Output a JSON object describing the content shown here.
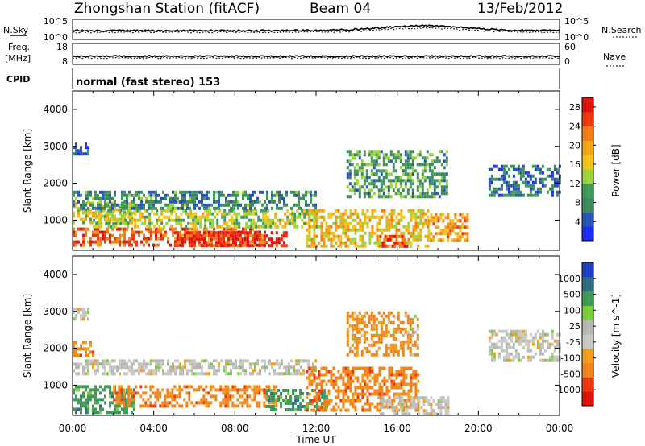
{
  "header": {
    "station": "Zhongshan Station (fitACF)",
    "beam": "Beam 04",
    "date": "13/Feb/2012"
  },
  "strip1": {
    "left_label": "N.Sky",
    "right_label": "N.Search",
    "left_ticks": [
      "10^5",
      "10^0"
    ],
    "right_ticks": [
      "10^5",
      "10^0"
    ]
  },
  "strip2": {
    "left_label_1": "Freq.",
    "left_label_2": "[MHz]",
    "right_label": "Nave",
    "left_ticks": [
      "18",
      "8"
    ],
    "right_ticks": [
      "60",
      "0"
    ]
  },
  "cpid": {
    "label": "CPID",
    "text": "normal (fast stereo) 153"
  },
  "colors": {
    "power": [
      "#1e2cff",
      "#2a55b8",
      "#3b8a5e",
      "#3f9a56",
      "#9bd33a",
      "#f0c419",
      "#f2a516",
      "#f07e12",
      "#ec3a0e",
      "#e0120c"
    ],
    "velocity": [
      "#e0120c",
      "#ec3a0e",
      "#f28519",
      "#f39e1b",
      "#c9c9c3",
      "#b8b8b2",
      "#7ccd3a",
      "#3f9a56",
      "#2f6f86",
      "#2040c8"
    ]
  },
  "chart_data": [
    {
      "type": "heatmap",
      "title": "",
      "xlabel": "",
      "ylabel": "Slant Range [km]",
      "xlim": [
        "00:00",
        "00:00"
      ],
      "ylim": [
        180,
        4500
      ],
      "x_ticks": [
        "00:00",
        "04:00",
        "08:00",
        "12:00",
        "16:00",
        "20:00",
        "00:00"
      ],
      "y_ticks": [
        "1000",
        "2000",
        "3000",
        "4000"
      ],
      "colorbar": {
        "label": "Power [dB]",
        "ticks": [
          "4",
          "8",
          "12",
          "16",
          "20",
          "24",
          "28"
        ],
        "range": [
          0,
          30
        ]
      },
      "regions": [
        {
          "t0": 0.0,
          "t1": 9.5,
          "r0": 300,
          "r1": 800,
          "value": 24
        },
        {
          "t0": 5.0,
          "t1": 10.5,
          "r0": 300,
          "r1": 700,
          "value": 28
        },
        {
          "t0": 0.0,
          "t1": 3.0,
          "r0": 900,
          "r1": 1500,
          "value": 16
        },
        {
          "t0": 1.0,
          "t1": 12.0,
          "r0": 800,
          "r1": 1300,
          "value": 14
        },
        {
          "t0": 0.0,
          "t1": 12.0,
          "r0": 1300,
          "r1": 1800,
          "value": 8
        },
        {
          "t0": 0.0,
          "t1": 0.8,
          "r0": 2800,
          "r1": 3100,
          "value": 4
        },
        {
          "t0": 11.5,
          "t1": 17.5,
          "r0": 300,
          "r1": 1300,
          "value": 18
        },
        {
          "t0": 15.0,
          "t1": 16.5,
          "r0": 300,
          "r1": 600,
          "value": 26
        },
        {
          "t0": 17.5,
          "t1": 19.5,
          "r0": 500,
          "r1": 1200,
          "value": 20
        },
        {
          "t0": 13.5,
          "t1": 18.5,
          "r0": 1600,
          "r1": 2900,
          "value": 10
        },
        {
          "t0": 20.5,
          "t1": 24.0,
          "r0": 1700,
          "r1": 2500,
          "value": 6
        }
      ]
    },
    {
      "type": "heatmap",
      "title": "",
      "xlabel": "Time UT",
      "ylabel": "Slant Range [km]",
      "xlim": [
        "00:00",
        "00:00"
      ],
      "ylim": [
        180,
        4500
      ],
      "x_ticks": [
        "00:00",
        "04:00",
        "08:00",
        "12:00",
        "16:00",
        "20:00",
        "00:00"
      ],
      "y_ticks": [
        "1000",
        "2000",
        "3000",
        "4000"
      ],
      "colorbar": {
        "label": "Velocity [m s^-1]",
        "ticks": [
          "1000",
          "500",
          "100",
          "25",
          "-25",
          "-100",
          "-500",
          "-1000"
        ],
        "range": [
          -1000,
          1000
        ]
      },
      "regions": [
        {
          "t0": 0.0,
          "t1": 3.0,
          "r0": 300,
          "r1": 1000,
          "value": 300
        },
        {
          "t0": 2.0,
          "t1": 10.0,
          "r0": 400,
          "r1": 1000,
          "value": -300
        },
        {
          "t0": 0.0,
          "t1": 12.0,
          "r0": 1300,
          "r1": 1700,
          "value": 0
        },
        {
          "t0": 0.0,
          "t1": 1.0,
          "r0": 1800,
          "r1": 2200,
          "value": -300
        },
        {
          "t0": 0.0,
          "t1": 0.8,
          "r0": 2800,
          "r1": 3100,
          "value": 0
        },
        {
          "t0": 9.5,
          "t1": 12.5,
          "r0": 300,
          "r1": 900,
          "value": 300
        },
        {
          "t0": 11.5,
          "t1": 17.0,
          "r0": 300,
          "r1": 1500,
          "value": -300
        },
        {
          "t0": 15.0,
          "t1": 18.5,
          "r0": 200,
          "r1": 700,
          "value": 0
        },
        {
          "t0": 13.5,
          "t1": 17.0,
          "r0": 1800,
          "r1": 3000,
          "value": -200
        },
        {
          "t0": 20.5,
          "t1": 24.0,
          "r0": 1700,
          "r1": 2500,
          "value": 0
        }
      ]
    }
  ]
}
